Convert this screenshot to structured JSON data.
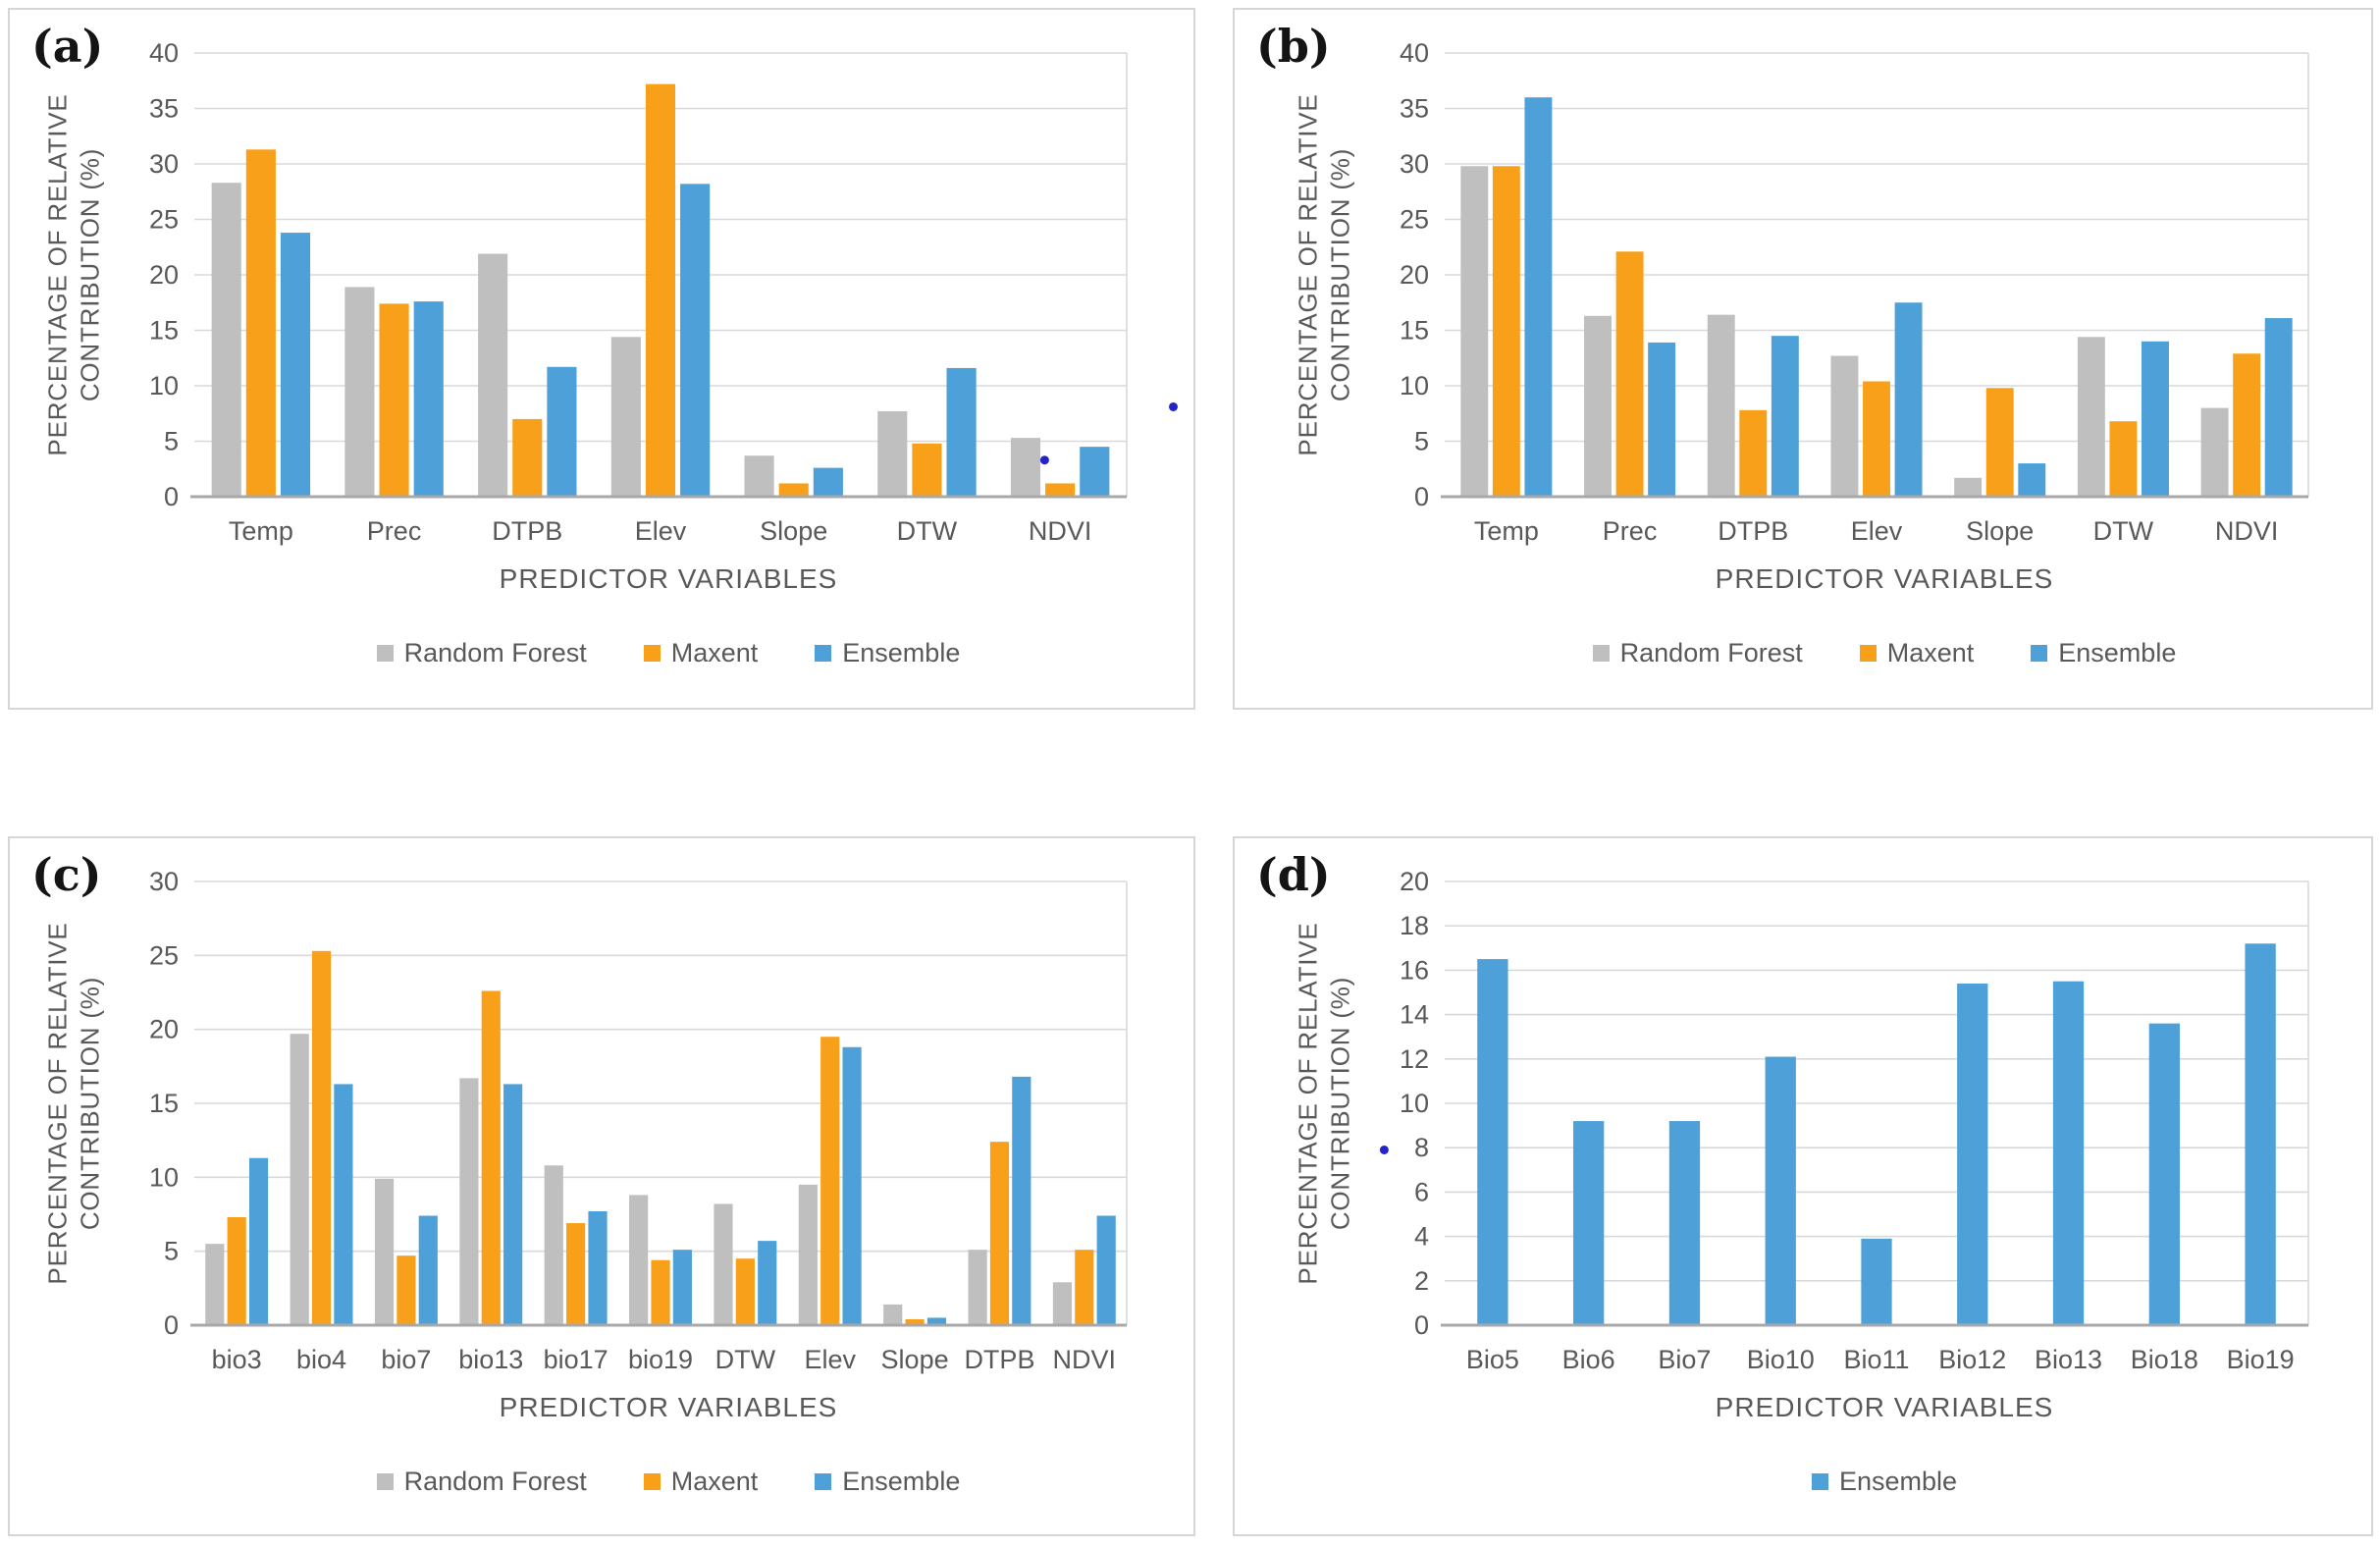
{
  "style": {
    "grid_color": "#d9d9d9",
    "baseline_color": "#a8a8a8",
    "plot_edge_color": "#d9d9d9",
    "text_color": "#595959",
    "speck_color": "#2323c8",
    "series_colors": {
      "random_forest": "#bfbfbf",
      "maxent": "#f9a01b",
      "ensemble": "#4da0d8"
    }
  },
  "chart_data": [
    {
      "type": "bar",
      "panel_label": "(a)",
      "ylabel_line1": "PERCENTAGE OF RELATIVE",
      "ylabel_line2": "CONTRIBUTION (%)",
      "xlabel": "PREDICTOR VARIABLES",
      "ylim": [
        0,
        40
      ],
      "ytick_step": 5,
      "yticks": [
        0,
        5,
        10,
        15,
        20,
        25,
        30,
        35,
        40
      ],
      "grid": true,
      "legend_position": "bottom",
      "categories": [
        "Temp",
        "Prec",
        "DTPB",
        "Elev",
        "Slope",
        "DTW",
        "NDVI"
      ],
      "series": [
        {
          "name": "Random Forest",
          "color": "#bfbfbf",
          "values": [
            28.3,
            18.9,
            21.9,
            14.4,
            3.7,
            7.7,
            5.3
          ]
        },
        {
          "name": "Maxent",
          "color": "#f9a01b",
          "values": [
            31.3,
            17.4,
            7.0,
            37.2,
            1.2,
            4.8,
            1.2
          ]
        },
        {
          "name": "Ensemble",
          "color": "#4da0d8",
          "values": [
            23.8,
            17.6,
            11.7,
            28.2,
            2.6,
            11.6,
            4.5
          ]
        }
      ],
      "specks": [
        {
          "xf": 0.912,
          "value": 3.3
        },
        {
          "xf": 1.05,
          "value": 8.1
        }
      ]
    },
    {
      "type": "bar",
      "panel_label": "(b)",
      "ylabel_line1": "PERCENTAGE OF RELATIVE",
      "ylabel_line2": "CONTRIBUTION (%)",
      "xlabel": "PREDICTOR VARIABLES",
      "ylim": [
        0,
        40
      ],
      "ytick_step": 5,
      "yticks": [
        0,
        5,
        10,
        15,
        20,
        25,
        30,
        35,
        40
      ],
      "grid": true,
      "legend_position": "bottom",
      "categories": [
        "Temp",
        "Prec",
        "DTPB",
        "Elev",
        "Slope",
        "DTW",
        "NDVI"
      ],
      "series": [
        {
          "name": "Random Forest",
          "color": "#bfbfbf",
          "values": [
            29.8,
            16.3,
            16.4,
            12.7,
            1.7,
            14.4,
            8.0
          ]
        },
        {
          "name": "Maxent",
          "color": "#f9a01b",
          "values": [
            29.8,
            22.1,
            7.8,
            10.4,
            9.8,
            6.8,
            12.9
          ]
        },
        {
          "name": "Ensemble",
          "color": "#4da0d8",
          "values": [
            36.0,
            13.9,
            14.5,
            17.5,
            3.0,
            14.0,
            16.1
          ]
        }
      ],
      "specks": []
    },
    {
      "type": "bar",
      "panel_label": "(c)",
      "ylabel_line1": "PERCENTAGE OF RELATIVE",
      "ylabel_line2": "CONTRIBUTION (%)",
      "xlabel": "PREDICTOR VARIABLES",
      "ylim": [
        0,
        30
      ],
      "ytick_step": 5,
      "yticks": [
        0,
        5,
        10,
        15,
        20,
        25,
        30
      ],
      "grid": true,
      "legend_position": "bottom",
      "categories": [
        "bio3",
        "bio4",
        "bio7",
        "bio13",
        "bio17",
        "bio19",
        "DTW",
        "Elev",
        "Slope",
        "DTPB",
        "NDVI"
      ],
      "series": [
        {
          "name": "Random Forest",
          "color": "#bfbfbf",
          "values": [
            5.5,
            19.7,
            9.9,
            16.7,
            10.8,
            8.8,
            8.2,
            9.5,
            1.4,
            5.1,
            2.9
          ]
        },
        {
          "name": "Maxent",
          "color": "#f9a01b",
          "values": [
            7.3,
            25.3,
            4.7,
            22.6,
            6.9,
            4.4,
            4.5,
            19.5,
            0.4,
            12.4,
            5.1
          ]
        },
        {
          "name": "Ensemble",
          "color": "#4da0d8",
          "values": [
            11.3,
            16.3,
            7.4,
            16.3,
            7.7,
            5.1,
            5.7,
            18.8,
            0.5,
            16.8,
            7.4
          ]
        }
      ],
      "specks": []
    },
    {
      "type": "bar",
      "panel_label": "(d)",
      "ylabel_line1": "PERCENTAGE OF RELATIVE",
      "ylabel_line2": "CONTRIBUTION (%)",
      "xlabel": "PREDICTOR VARIABLES",
      "ylim": [
        0,
        20
      ],
      "ytick_step": 2,
      "yticks": [
        0,
        2,
        4,
        6,
        8,
        10,
        12,
        14,
        16,
        18,
        20
      ],
      "grid": true,
      "legend_position": "bottom",
      "categories": [
        "Bio5",
        "Bio6",
        "Bio7",
        "Bio10",
        "Bio11",
        "Bio12",
        "Bio13",
        "Bio18",
        "Bio19"
      ],
      "series": [
        {
          "name": "Ensemble",
          "color": "#4da0d8",
          "values": [
            16.5,
            9.2,
            9.2,
            12.1,
            3.9,
            15.4,
            15.5,
            13.6,
            17.2
          ]
        }
      ],
      "specks": [
        {
          "xf": -0.07,
          "value": 7.9
        }
      ]
    }
  ]
}
